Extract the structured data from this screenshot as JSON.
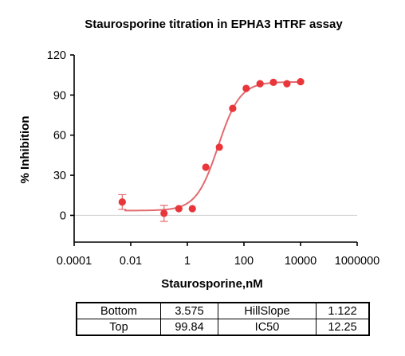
{
  "chart_data": {
    "type": "scatter",
    "title": "Staurosporine titration in EPHA3 HTRF assay",
    "xlabel": "Staurosporine,nM",
    "ylabel": "% Inhibition",
    "x_scale": "log",
    "xlim": [
      0.0001,
      1000000
    ],
    "ylim": [
      -20,
      120
    ],
    "x_ticks": [
      "0.0001",
      "0.01",
      "1",
      "100",
      "10000",
      "1000000"
    ],
    "y_ticks": [
      "0",
      "30",
      "60",
      "90",
      "120"
    ],
    "grid": false,
    "colors": {
      "points": "#e8363a",
      "curve": "#e26a6e",
      "zero_line": "#cfcfcf"
    },
    "series": [
      {
        "points": [
          {
            "x": 0.005,
            "y": 10,
            "err": 5.5
          },
          {
            "x": 0.15,
            "y": 1.5,
            "err": 6
          },
          {
            "x": 0.5,
            "y": 5
          },
          {
            "x": 1.5,
            "y": 5
          },
          {
            "x": 4.5,
            "y": 36
          },
          {
            "x": 13.5,
            "y": 51
          },
          {
            "x": 40,
            "y": 80
          },
          {
            "x": 120,
            "y": 95
          },
          {
            "x": 370,
            "y": 98.5
          },
          {
            "x": 1100,
            "y": 99.5
          },
          {
            "x": 3300,
            "y": 98.5
          },
          {
            "x": 10000,
            "y": 100
          }
        ]
      }
    ],
    "fit": {
      "model": "4PL",
      "bottom": 3.575,
      "top": 99.84,
      "hillslope": 1.122,
      "ic50": 12.25
    }
  },
  "param_table": {
    "rows": [
      [
        "Bottom",
        "3.575",
        "HillSlope",
        "1.122"
      ],
      [
        "Top",
        "99.84",
        "IC50",
        "12.25"
      ]
    ]
  }
}
